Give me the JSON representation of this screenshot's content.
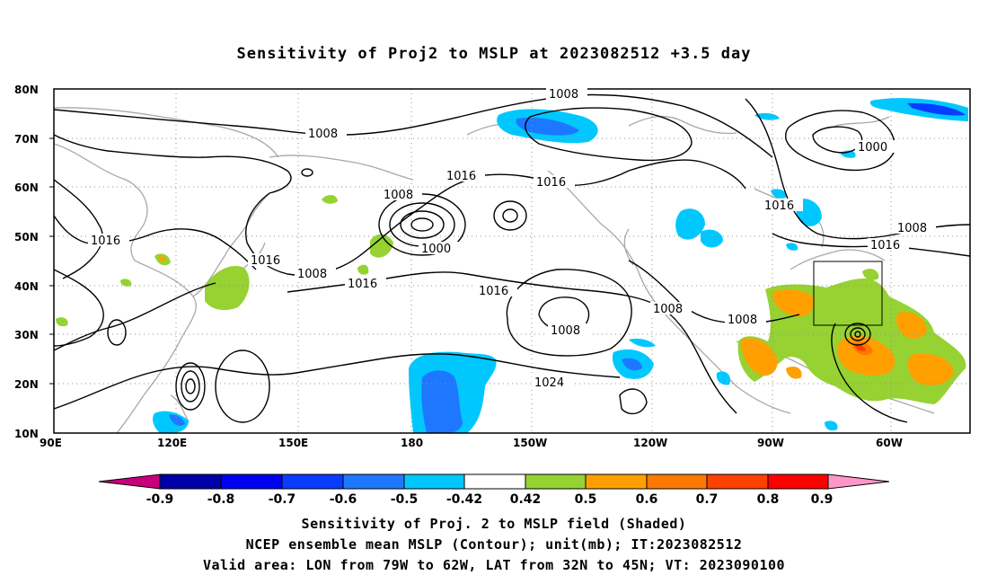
{
  "title": "Sensitivity of Proj2 to MSLP at 2023082512 +3.5 day",
  "axes": {
    "lat_labels": [
      "80N",
      "70N",
      "60N",
      "50N",
      "40N",
      "30N",
      "20N",
      "10N"
    ],
    "lon_labels": [
      "90E",
      "120E",
      "150E",
      "180",
      "150W",
      "120W",
      "90W",
      "60W"
    ]
  },
  "contour_labels": [
    "1008",
    "1008",
    "1008",
    "1008",
    "1008",
    "1008",
    "1008",
    "1000",
    "1000",
    "1016",
    "1016",
    "1016",
    "1016",
    "1016",
    "1016",
    "1016",
    "1016",
    "1024",
    "1008"
  ],
  "colorbar": {
    "labels": [
      "-0.9",
      "-0.8",
      "-0.7",
      "-0.6",
      "-0.5",
      "-0.42",
      "0.42",
      "0.5",
      "0.6",
      "0.7",
      "0.8",
      "0.9"
    ],
    "colors": [
      "#c8007c",
      "#0000a8",
      "#0000f0",
      "#0a3cff",
      "#1e78ff",
      "#00c8ff",
      "#ffffff",
      "#96d232",
      "#ffa000",
      "#ff7800",
      "#ff4100",
      "#ff0000",
      "#ff96c8"
    ]
  },
  "captions": [
    "Sensitivity of Proj. 2 to MSLP field (Shaded)",
    "NCEP ensemble mean MSLP (Contour); unit(mb); IT:2023082512",
    "Valid area: LON from 79W to 62W, LAT from 32N to 45N; VT: 2023090100"
  ]
}
